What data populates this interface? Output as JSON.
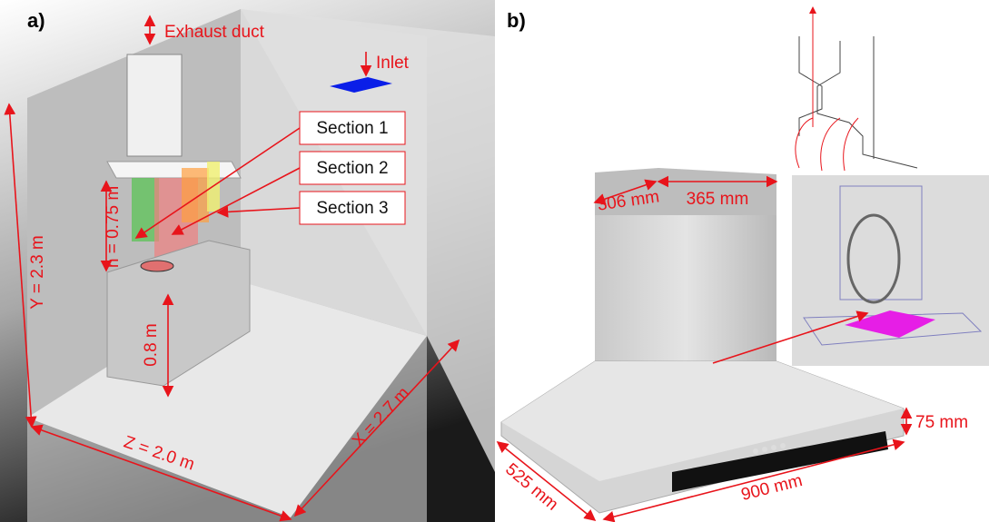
{
  "panel_a": {
    "label": "a)",
    "exhaust": "Exhaust duct",
    "inlet": "Inlet",
    "sections": [
      "Section 1",
      "Section 2",
      "Section 3"
    ],
    "h": "h = 0.75 m",
    "y": "Y = 2.3 m",
    "counter": "0.8 m",
    "z": "Z = 2.0 m",
    "x": "X = 2.7 m"
  },
  "panel_b": {
    "label": "b)",
    "depth_top": "306 mm",
    "width_top": "365 mm",
    "height_base": "75 mm",
    "depth_base": "525 mm",
    "width_base": "900 mm"
  }
}
